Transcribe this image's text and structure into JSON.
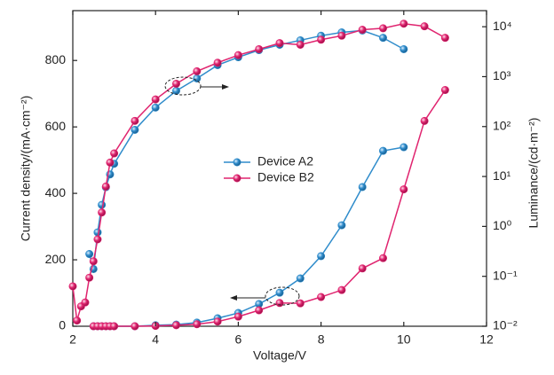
{
  "chart_data": {
    "type": "line",
    "x_label": "Voltage/V",
    "y_label": "Current density/(mA·cm⁻²)",
    "y2_label": "Luminance/(cd·m⁻²)",
    "xlim": [
      2,
      12
    ],
    "xticks": [
      2,
      4,
      6,
      8,
      10,
      12
    ],
    "ylim": [
      0,
      950
    ],
    "yticks": [
      0,
      200,
      400,
      600,
      800
    ],
    "y2lim": [
      0.01,
      21000
    ],
    "y2log": true,
    "y2ticks": [
      {
        "value": 0.01,
        "label": "10⁻²"
      },
      {
        "value": 0.1,
        "label": "10⁻¹"
      },
      {
        "value": 1,
        "label": "10⁰"
      },
      {
        "value": 10,
        "label": "10¹"
      },
      {
        "value": 100,
        "label": "10²"
      },
      {
        "value": 1000,
        "label": "10³"
      },
      {
        "value": 10000,
        "label": "10⁴"
      }
    ],
    "series": [
      {
        "name": "Device A2",
        "color": "#2f8ccb",
        "current": {
          "x": [
            2.5,
            2.6,
            2.7,
            2.8,
            2.9,
            3,
            3.5,
            4,
            4.5,
            5,
            5.5,
            6,
            6.5,
            7,
            7.5,
            8,
            8.5,
            9,
            9.5,
            10
          ],
          "values": [
            0,
            0,
            0,
            0,
            0,
            0,
            0,
            3,
            5,
            11,
            24,
            40,
            67,
            101,
            144,
            211,
            304,
            419,
            528,
            539
          ]
        },
        "luminance": {
          "axis": "y2",
          "x": [
            2.4,
            2.5,
            2.6,
            2.7,
            2.8,
            2.9,
            3,
            3.5,
            4,
            4.5,
            5,
            5.5,
            6,
            6.5,
            7,
            7.5,
            8,
            8.5,
            9,
            9.5,
            10
          ],
          "values": [
            0.28,
            0.14,
            0.76,
            2.7,
            6.1,
            11,
            18,
            86,
            240,
            520,
            920,
            1700,
            2450,
            3400,
            4350,
            5350,
            6600,
            7700,
            8400,
            6000,
            3550
          ]
        }
      },
      {
        "name": "Device B2",
        "color": "#e0246f",
        "current": {
          "x": [
            2.5,
            2.6,
            2.7,
            2.8,
            2.9,
            3,
            3.5,
            4,
            4.5,
            5,
            5.5,
            6,
            6.5,
            7,
            7.5,
            8,
            8.5,
            9,
            9.5,
            10,
            10.5,
            11
          ],
          "values": [
            0,
            0,
            0,
            0,
            0,
            0,
            0,
            1,
            3,
            6,
            14,
            29,
            48,
            70,
            69,
            88,
            109,
            174,
            205,
            412,
            618,
            711
          ]
        },
        "luminance": {
          "axis": "y2",
          "x": [
            2,
            2.1,
            2.2,
            2.3,
            2.4,
            2.5,
            2.6,
            2.7,
            2.8,
            2.9,
            3,
            3.5,
            4,
            4.5,
            5,
            5.5,
            6,
            6.5,
            7,
            7.5,
            8,
            8.5,
            9,
            9.5,
            10,
            10.5,
            11
          ],
          "values": [
            0.063,
            0.013,
            0.025,
            0.03,
            0.094,
            0.2,
            0.55,
            1.9,
            6.3,
            19,
            29,
            130,
            350,
            720,
            1280,
            1900,
            2700,
            3550,
            4700,
            4350,
            5500,
            6600,
            8700,
            9300,
            11500,
            10200,
            6000
          ]
        }
      }
    ]
  }
}
